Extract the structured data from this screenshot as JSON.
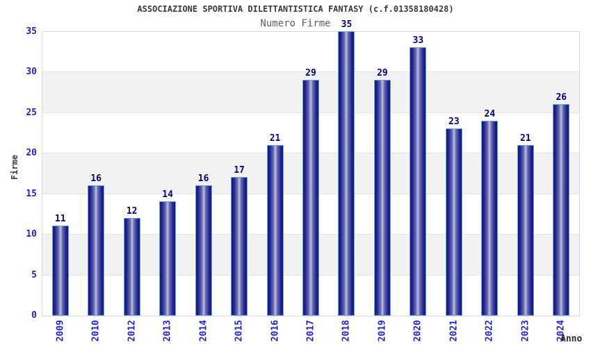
{
  "header": {
    "title": "ASSOCIAZIONE SPORTIVA DILETTANTISTICA FANTASY (c.f.01358180428)",
    "subtitle": "Numero Firme"
  },
  "chart_data": {
    "type": "bar",
    "title": "ASSOCIAZIONE SPORTIVA DILETTANTISTICA FANTASY (c.f.01358180428)",
    "subtitle": "Numero Firme",
    "xlabel": "Anno",
    "ylabel": "Firme",
    "categories": [
      "2009",
      "2010",
      "2012",
      "2013",
      "2014",
      "2015",
      "2016",
      "2017",
      "2018",
      "2019",
      "2020",
      "2021",
      "2022",
      "2023",
      "2024"
    ],
    "values": [
      11,
      16,
      12,
      14,
      16,
      17,
      21,
      29,
      35,
      29,
      33,
      23,
      24,
      21,
      26
    ],
    "ylim": [
      0,
      35
    ],
    "yticks": [
      0,
      5,
      10,
      15,
      20,
      25,
      30,
      35
    ],
    "grid": "horizontal alternating bands",
    "legend_position": "none"
  },
  "colors": {
    "bar_dark": "#17177f",
    "bar_light": "#bcc1e0",
    "bar_border": "#62aae2",
    "axis_tick_text": "#2121cd",
    "value_label_text": "#00007f",
    "band_gray": "#f2f2f2",
    "band_white": "#ffffff",
    "gridline": "#e4e4e4",
    "plot_border": "#d9d9d9",
    "title_text": "#3a3a3a",
    "subtitle_text": "#5f5f5f"
  }
}
